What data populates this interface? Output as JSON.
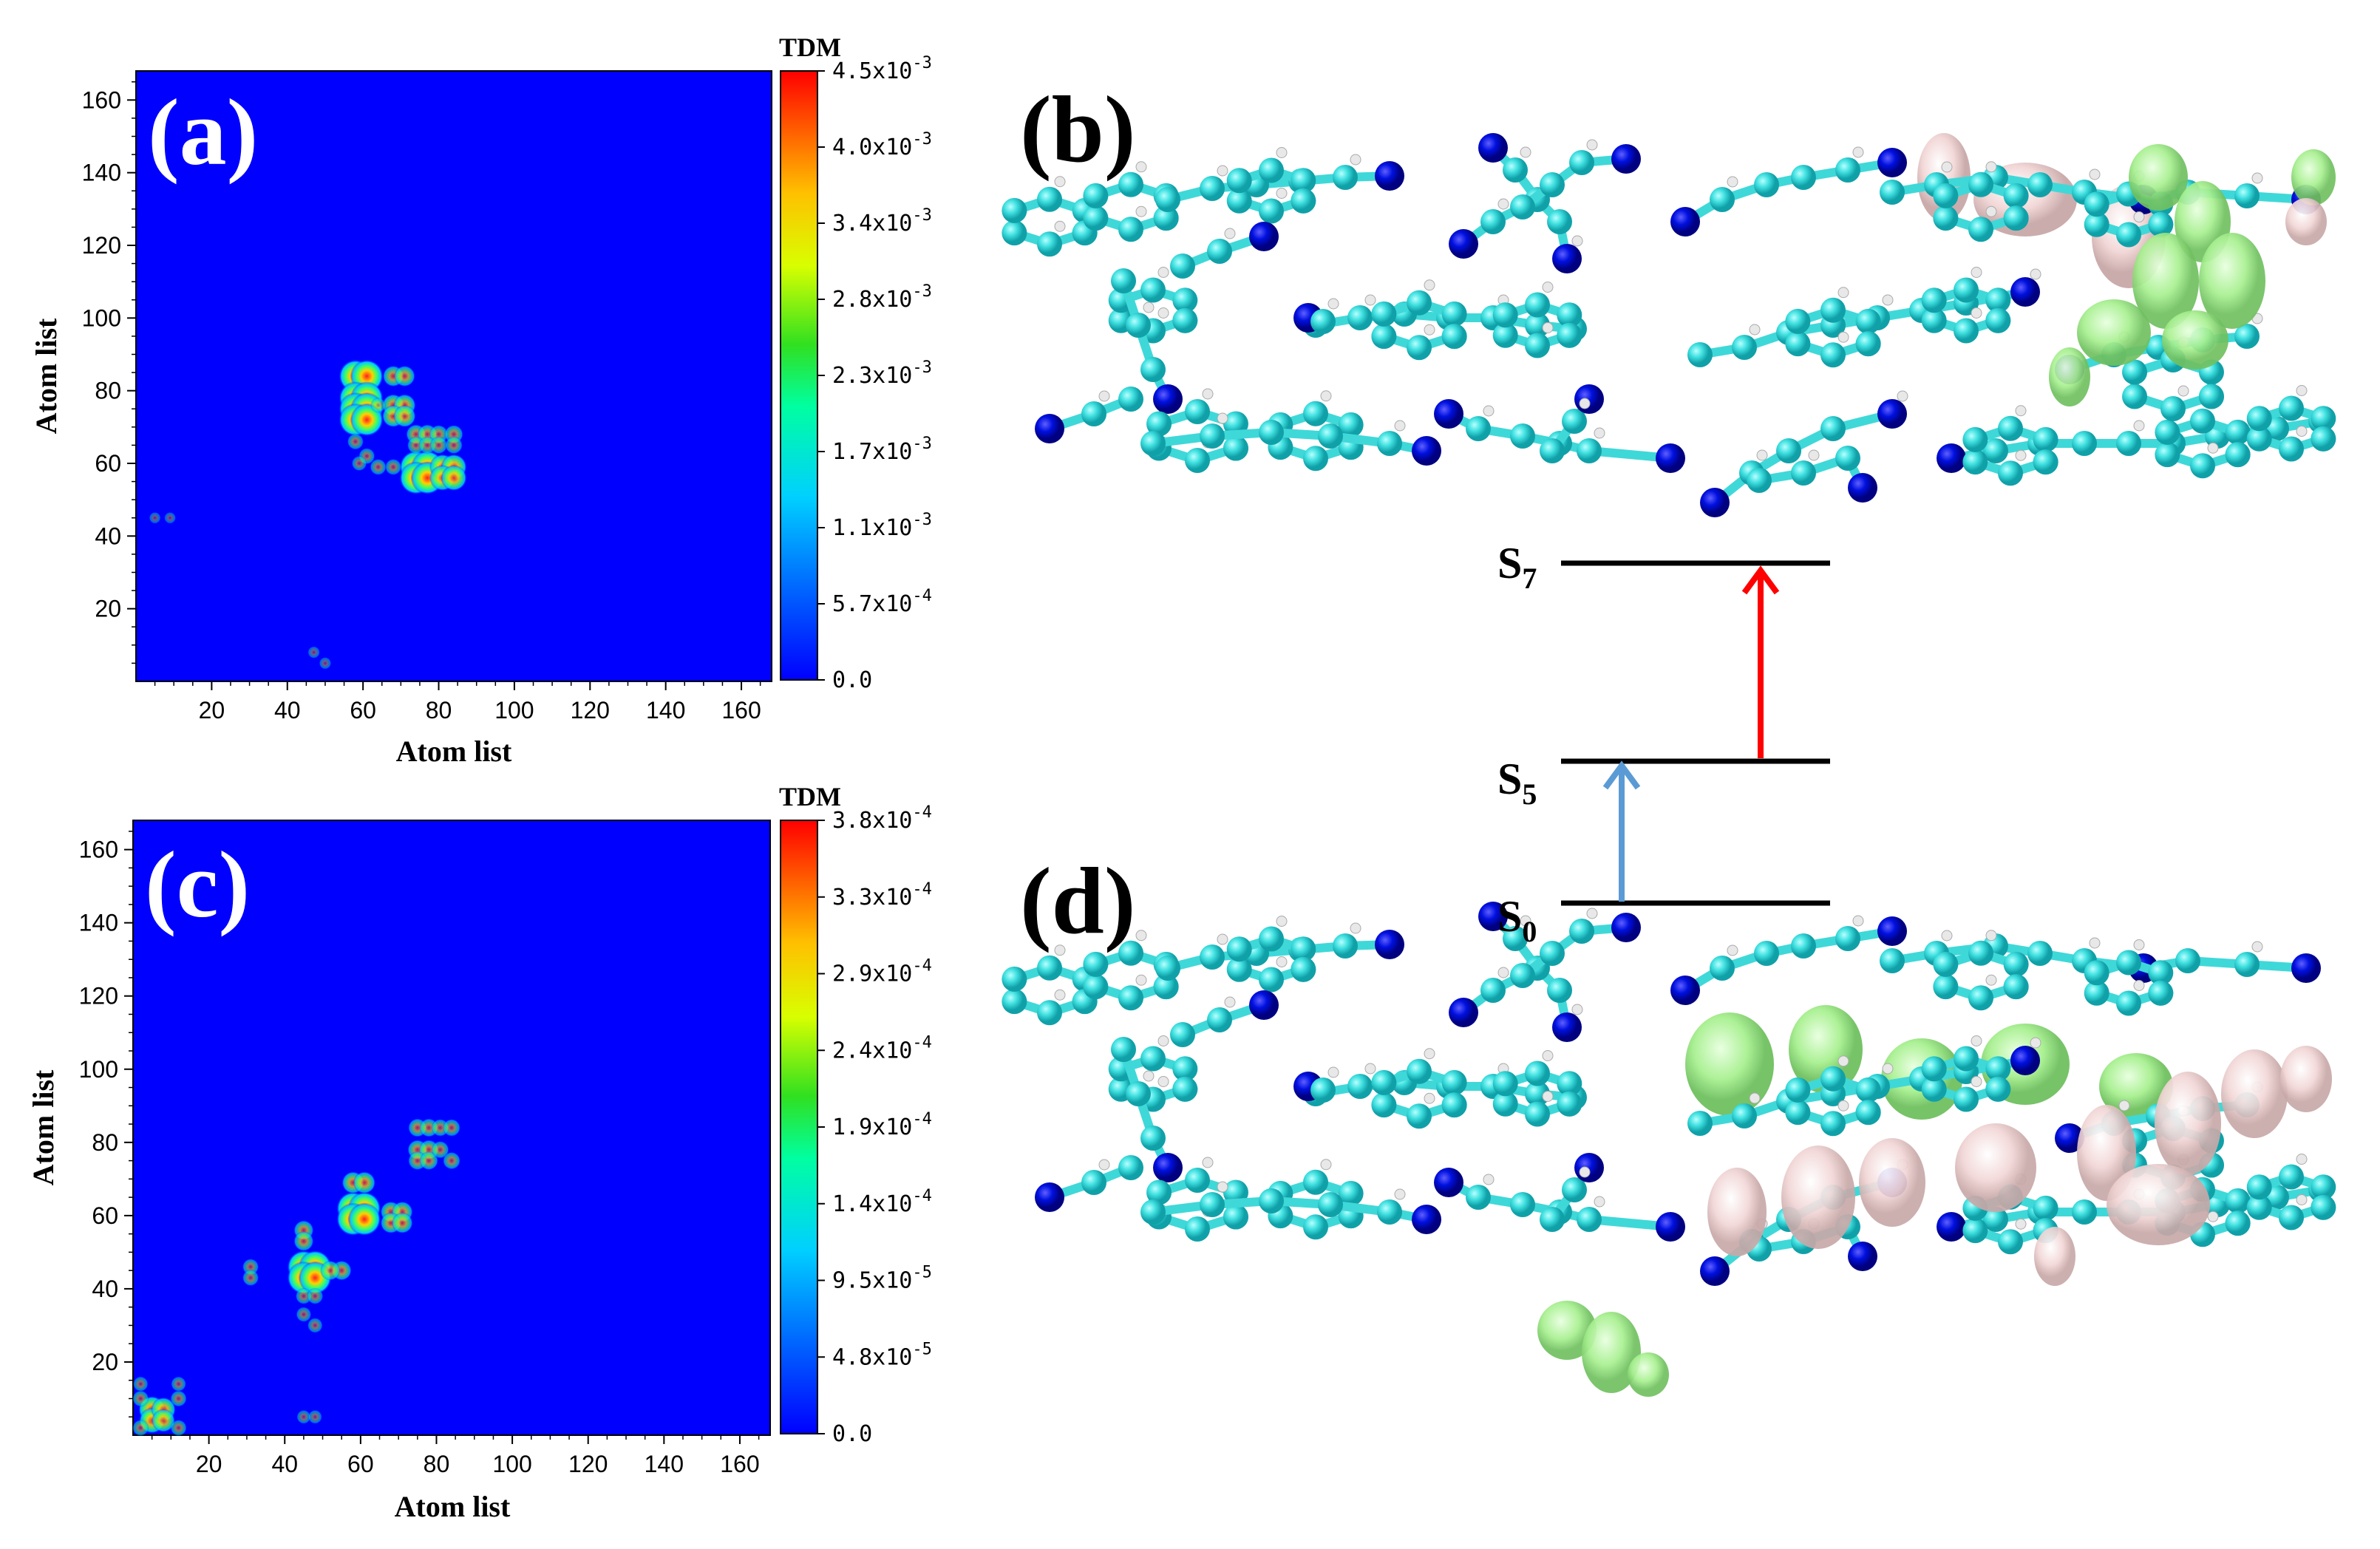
{
  "chart_data": [
    {
      "id": "a",
      "type": "heatmap",
      "panel_label": "(a)",
      "title": "",
      "xlabel": "Atom list",
      "ylabel": "Atom list",
      "xlim": [
        0,
        168
      ],
      "ylim": [
        0,
        168
      ],
      "x_ticks": [
        20,
        40,
        60,
        80,
        100,
        120,
        140,
        160
      ],
      "y_ticks": [
        20,
        40,
        60,
        80,
        100,
        120,
        140,
        160
      ],
      "colorbar": {
        "title": "TDM",
        "min": 0,
        "max": 0.0045,
        "tick_labels": [
          "4.5x10^-3",
          "4.0x10^-3",
          "3.4x10^-3",
          "2.8x10^-3",
          "2.3x10^-3",
          "1.7x10^-3",
          "1.1x10^-3",
          "5.7x10^-4",
          "0.0"
        ],
        "colors": [
          "#0000ff",
          "#00bfff",
          "#00ffb0",
          "#32e000",
          "#d8ff00",
          "#ffc000",
          "#ff5000",
          "#ff0000"
        ]
      },
      "hotspots": [
        {
          "x": 58,
          "y": 84,
          "v": 1.0
        },
        {
          "x": 61,
          "y": 84,
          "v": 1.0
        },
        {
          "x": 58,
          "y": 78,
          "v": 1.0
        },
        {
          "x": 61,
          "y": 78,
          "v": 1.0
        },
        {
          "x": 58,
          "y": 75,
          "v": 1.0
        },
        {
          "x": 61,
          "y": 75,
          "v": 1.0
        },
        {
          "x": 58,
          "y": 72,
          "v": 1.0
        },
        {
          "x": 61,
          "y": 72,
          "v": 1.0
        },
        {
          "x": 74,
          "y": 59,
          "v": 1.0
        },
        {
          "x": 77,
          "y": 59,
          "v": 1.0
        },
        {
          "x": 74,
          "y": 56,
          "v": 1.0
        },
        {
          "x": 77,
          "y": 56,
          "v": 1.0
        },
        {
          "x": 81,
          "y": 59,
          "v": 0.7
        },
        {
          "x": 84,
          "y": 59,
          "v": 0.7
        },
        {
          "x": 81,
          "y": 56,
          "v": 0.7
        },
        {
          "x": 84,
          "y": 56,
          "v": 0.7
        },
        {
          "x": 68,
          "y": 84,
          "v": 0.5
        },
        {
          "x": 71,
          "y": 84,
          "v": 0.5
        },
        {
          "x": 68,
          "y": 76,
          "v": 0.55
        },
        {
          "x": 71,
          "y": 76,
          "v": 0.55
        },
        {
          "x": 68,
          "y": 73,
          "v": 0.55
        },
        {
          "x": 71,
          "y": 73,
          "v": 0.55
        },
        {
          "x": 74,
          "y": 68,
          "v": 0.45
        },
        {
          "x": 77,
          "y": 68,
          "v": 0.45
        },
        {
          "x": 80,
          "y": 68,
          "v": 0.4
        },
        {
          "x": 84,
          "y": 68,
          "v": 0.4
        },
        {
          "x": 74,
          "y": 65,
          "v": 0.35
        },
        {
          "x": 77,
          "y": 65,
          "v": 0.35
        },
        {
          "x": 80,
          "y": 65,
          "v": 0.35
        },
        {
          "x": 84,
          "y": 65,
          "v": 0.35
        },
        {
          "x": 64,
          "y": 59,
          "v": 0.3
        },
        {
          "x": 68,
          "y": 59,
          "v": 0.3
        },
        {
          "x": 58,
          "y": 66,
          "v": 0.3
        },
        {
          "x": 61,
          "y": 62,
          "v": 0.3
        },
        {
          "x": 59,
          "y": 60,
          "v": 0.25
        },
        {
          "x": 64,
          "y": 76,
          "v": 0.25
        },
        {
          "x": 47,
          "y": 8,
          "v": 0.12
        },
        {
          "x": 50,
          "y": 5,
          "v": 0.12
        },
        {
          "x": 5,
          "y": 45,
          "v": 0.1
        },
        {
          "x": 9,
          "y": 45,
          "v": 0.1
        }
      ]
    },
    {
      "id": "c",
      "type": "heatmap",
      "panel_label": "(c)",
      "title": "",
      "xlabel": "Atom list",
      "ylabel": "Atom list",
      "xlim": [
        0,
        168
      ],
      "ylim": [
        0,
        168
      ],
      "x_ticks": [
        20,
        40,
        60,
        80,
        100,
        120,
        140,
        160
      ],
      "y_ticks": [
        20,
        40,
        60,
        80,
        100,
        120,
        140,
        160
      ],
      "colorbar": {
        "title": "TDM",
        "min": 0,
        "max": 0.00038,
        "tick_labels": [
          "3.8x10^-4",
          "3.3x10^-4",
          "2.9x10^-4",
          "2.4x10^-4",
          "1.9x10^-4",
          "1.4x10^-4",
          "9.5x10^-5",
          "4.8x10^-5",
          "0.0"
        ],
        "colors": [
          "#0000ff",
          "#00bfff",
          "#00ffb0",
          "#32e000",
          "#d8ff00",
          "#ffc000",
          "#ff5000",
          "#ff0000"
        ]
      },
      "hotspots": [
        {
          "x": 45,
          "y": 46,
          "v": 1.0
        },
        {
          "x": 48,
          "y": 46,
          "v": 1.0
        },
        {
          "x": 45,
          "y": 43,
          "v": 1.0
        },
        {
          "x": 48,
          "y": 43,
          "v": 1.0
        },
        {
          "x": 58,
          "y": 62,
          "v": 1.0
        },
        {
          "x": 61,
          "y": 62,
          "v": 1.0
        },
        {
          "x": 58,
          "y": 59,
          "v": 1.0
        },
        {
          "x": 61,
          "y": 59,
          "v": 1.0
        },
        {
          "x": 5,
          "y": 7,
          "v": 0.75
        },
        {
          "x": 5,
          "y": 4,
          "v": 0.7
        },
        {
          "x": 8,
          "y": 7,
          "v": 0.65
        },
        {
          "x": 8,
          "y": 4,
          "v": 0.6
        },
        {
          "x": 2,
          "y": 10,
          "v": 0.3
        },
        {
          "x": 12,
          "y": 10,
          "v": 0.3
        },
        {
          "x": 2,
          "y": 2,
          "v": 0.3
        },
        {
          "x": 12,
          "y": 2,
          "v": 0.3
        },
        {
          "x": 2,
          "y": 14,
          "v": 0.25
        },
        {
          "x": 12,
          "y": 14,
          "v": 0.25
        },
        {
          "x": 58,
          "y": 69,
          "v": 0.55
        },
        {
          "x": 61,
          "y": 69,
          "v": 0.55
        },
        {
          "x": 68,
          "y": 61,
          "v": 0.5
        },
        {
          "x": 71,
          "y": 61,
          "v": 0.5
        },
        {
          "x": 68,
          "y": 58,
          "v": 0.5
        },
        {
          "x": 71,
          "y": 58,
          "v": 0.5
        },
        {
          "x": 45,
          "y": 56,
          "v": 0.45
        },
        {
          "x": 45,
          "y": 53,
          "v": 0.45
        },
        {
          "x": 55,
          "y": 45,
          "v": 0.45
        },
        {
          "x": 52,
          "y": 45,
          "v": 0.45
        },
        {
          "x": 45,
          "y": 38,
          "v": 0.3
        },
        {
          "x": 48,
          "y": 38,
          "v": 0.3
        },
        {
          "x": 31,
          "y": 46,
          "v": 0.3
        },
        {
          "x": 31,
          "y": 43,
          "v": 0.3
        },
        {
          "x": 75,
          "y": 84,
          "v": 0.4
        },
        {
          "x": 78,
          "y": 84,
          "v": 0.4
        },
        {
          "x": 81,
          "y": 84,
          "v": 0.35
        },
        {
          "x": 84,
          "y": 84,
          "v": 0.35
        },
        {
          "x": 75,
          "y": 78,
          "v": 0.45
        },
        {
          "x": 78,
          "y": 78,
          "v": 0.45
        },
        {
          "x": 75,
          "y": 75,
          "v": 0.4
        },
        {
          "x": 78,
          "y": 75,
          "v": 0.4
        },
        {
          "x": 81,
          "y": 78,
          "v": 0.35
        },
        {
          "x": 84,
          "y": 75,
          "v": 0.35
        },
        {
          "x": 45,
          "y": 33,
          "v": 0.25
        },
        {
          "x": 48,
          "y": 30,
          "v": 0.25
        },
        {
          "x": 45,
          "y": 5,
          "v": 0.2
        },
        {
          "x": 48,
          "y": 5,
          "v": 0.2
        }
      ]
    }
  ],
  "energy_levels": {
    "levels": [
      {
        "name": "S",
        "sub": "7",
        "rank": 3
      },
      {
        "name": "S",
        "sub": "5",
        "rank": 2
      },
      {
        "name": "S",
        "sub": "0",
        "rank": 1
      }
    ],
    "transitions": [
      {
        "from": "S0",
        "to": "S5",
        "color": "#5b9bd5"
      },
      {
        "from": "S5",
        "to": "S7",
        "color": "#ff0000"
      }
    ]
  },
  "molecule_panels": [
    {
      "id": "b",
      "label": "(b)"
    },
    {
      "id": "d",
      "label": "(d)"
    }
  ],
  "colors": {
    "carbon": "#40e0e0",
    "nitrogen": "#0000e0",
    "hydrogen": "#e8e8e8",
    "bond": "#3fd8d8",
    "hole_lobe": "#a8f090",
    "electron_lobe": "#f2d6d6"
  }
}
